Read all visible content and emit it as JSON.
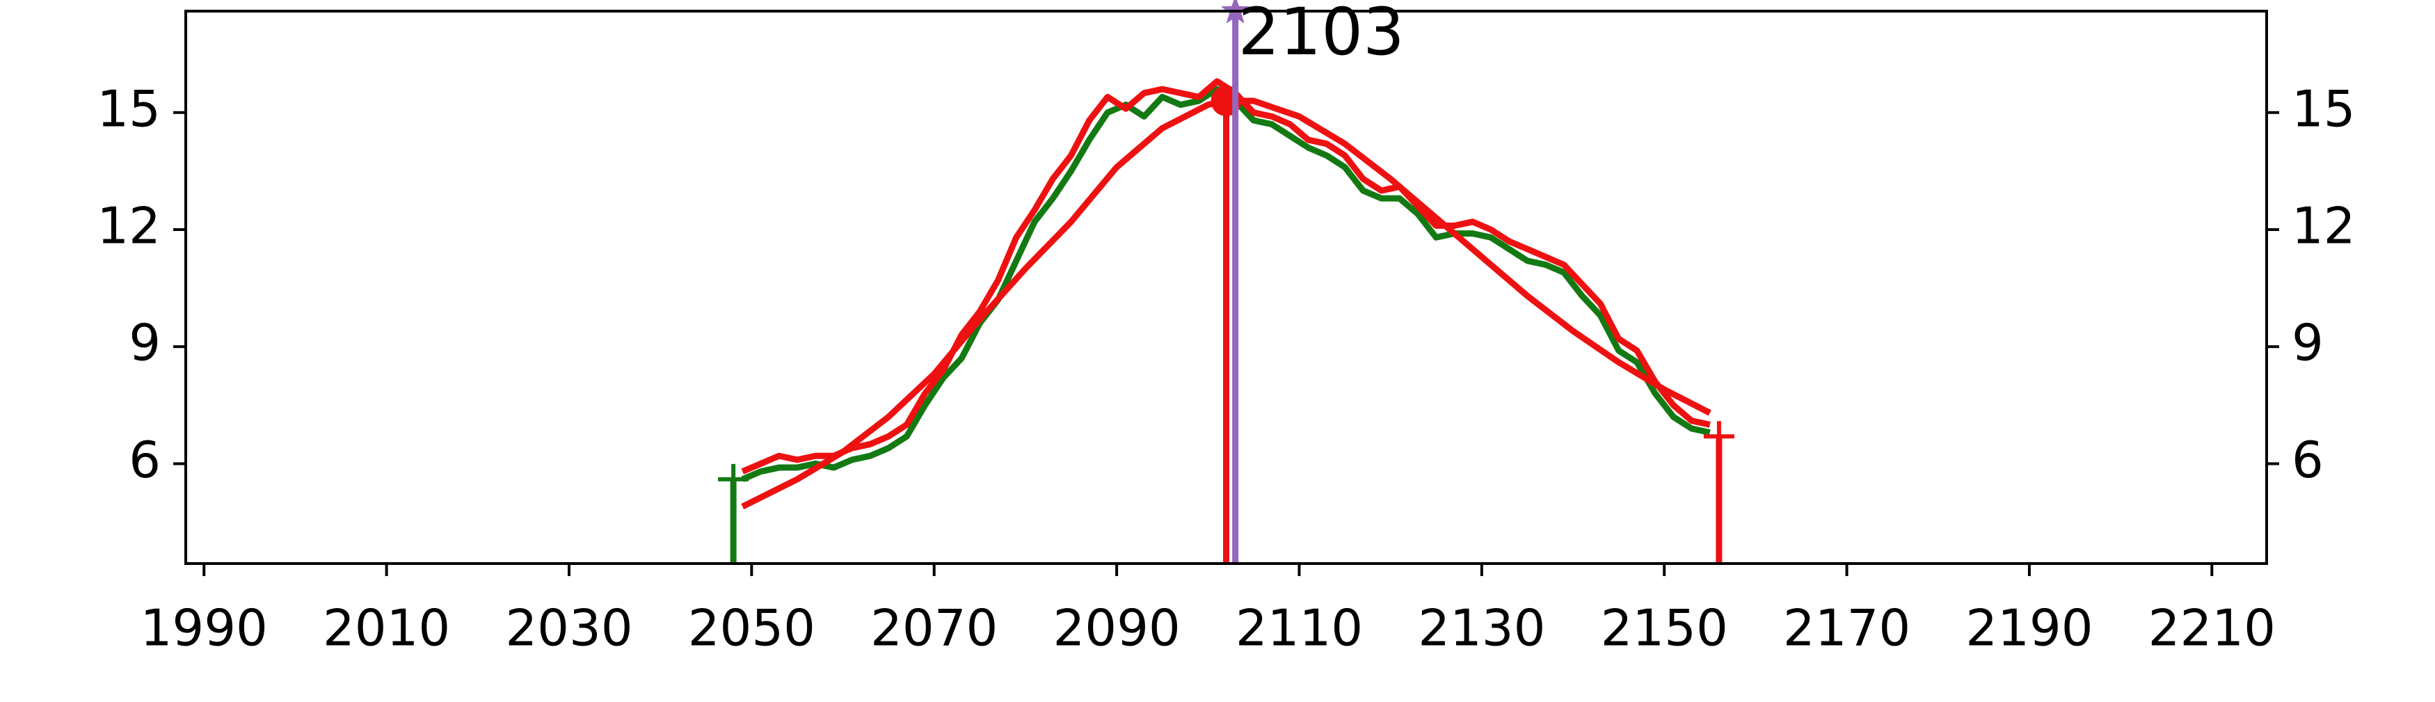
{
  "chart_data": {
    "type": "line",
    "xlim": [
      1988,
      2216
    ],
    "xticks": [
      1990,
      2010,
      2030,
      2050,
      2070,
      2090,
      2110,
      2130,
      2150,
      2170,
      2190,
      2210
    ],
    "ylim": [
      3.44,
      17.6
    ],
    "yticks": [
      6,
      9,
      12,
      15
    ],
    "y2lim": [
      3.44,
      17.6
    ],
    "y2ticks": [
      6,
      9,
      12,
      15
    ],
    "series": [
      {
        "color": "#137a13",
        "x": [
          2049,
          2051,
          2053,
          2055,
          2057,
          2059,
          2061,
          2063,
          2065,
          2067,
          2069,
          2071,
          2073,
          2075,
          2077,
          2079,
          2081,
          2083,
          2085,
          2087,
          2089,
          2091,
          2093,
          2095,
          2097,
          2099,
          2101,
          2103,
          2105,
          2107,
          2109,
          2111,
          2113,
          2115,
          2117,
          2119,
          2121,
          2123,
          2125,
          2127,
          2129,
          2131,
          2133,
          2135,
          2137,
          2139,
          2141,
          2143,
          2145,
          2147,
          2149,
          2151,
          2153,
          2155
        ],
        "values": [
          5.6,
          5.8,
          5.9,
          5.9,
          6.0,
          5.9,
          6.1,
          6.2,
          6.4,
          6.7,
          7.5,
          8.2,
          8.7,
          9.6,
          10.2,
          11.2,
          12.2,
          12.8,
          13.5,
          14.3,
          15.0,
          15.2,
          14.9,
          15.4,
          15.2,
          15.3,
          15.6,
          15.3,
          14.8,
          14.7,
          14.4,
          14.1,
          13.9,
          13.6,
          13.0,
          12.8,
          12.8,
          12.4,
          11.8,
          11.9,
          11.9,
          11.8,
          11.5,
          11.2,
          11.1,
          10.9,
          10.3,
          9.8,
          8.9,
          8.6,
          7.8,
          7.2,
          6.9,
          6.8
        ]
      },
      {
        "color": "#ee1111",
        "x": [
          2049,
          2051,
          2053,
          2055,
          2057,
          2059,
          2061,
          2063,
          2065,
          2067,
          2069,
          2071,
          2073,
          2075,
          2077,
          2079,
          2081,
          2083,
          2085,
          2087,
          2089,
          2091,
          2093,
          2095,
          2097,
          2099,
          2101,
          2103,
          2105,
          2107,
          2109,
          2111,
          2113,
          2115,
          2117,
          2119,
          2121,
          2123,
          2125,
          2127,
          2129,
          2131,
          2133,
          2135,
          2137,
          2139,
          2141,
          2143,
          2145,
          2147,
          2149,
          2151,
          2153,
          2155
        ],
        "values": [
          5.8,
          6.0,
          6.2,
          6.1,
          6.2,
          6.2,
          6.4,
          6.5,
          6.7,
          7.0,
          7.8,
          8.4,
          9.3,
          9.9,
          10.7,
          11.8,
          12.5,
          13.3,
          13.9,
          14.8,
          15.4,
          15.1,
          15.5,
          15.6,
          15.5,
          15.4,
          15.8,
          15.5,
          15.0,
          14.9,
          14.7,
          14.3,
          14.2,
          13.9,
          13.3,
          13.0,
          13.1,
          12.6,
          12.1,
          12.1,
          12.2,
          12.0,
          11.7,
          11.5,
          11.3,
          11.1,
          10.6,
          10.1,
          9.2,
          8.9,
          8.1,
          7.5,
          7.1,
          7.0
        ]
      },
      {
        "color": "#ee1111",
        "x": [
          2049,
          2055,
          2060,
          2065,
          2070,
          2075,
          2080,
          2085,
          2090,
          2095,
          2100,
          2102,
          2105,
          2110,
          2115,
          2120,
          2125,
          2130,
          2135,
          2140,
          2145,
          2150,
          2155
        ],
        "values": [
          4.9,
          5.6,
          6.3,
          7.2,
          8.3,
          9.7,
          11.0,
          12.2,
          13.6,
          14.6,
          15.2,
          15.3,
          15.3,
          14.9,
          14.2,
          13.3,
          12.3,
          11.3,
          10.3,
          9.4,
          8.6,
          7.9,
          7.3
        ]
      }
    ],
    "vlines": [
      {
        "x": 2048,
        "y": 5.6,
        "color": "#137a13",
        "marker": "plus"
      },
      {
        "x": 2156,
        "y": 6.7,
        "color": "#ee1111",
        "marker": "plus"
      },
      {
        "x": 2102,
        "y": 15.3,
        "color": "#ee1111",
        "marker": "dot"
      },
      {
        "x": 2103,
        "y": 17.6,
        "color": "#9467bd",
        "marker": "star"
      }
    ],
    "annotation": {
      "x": 2103
    }
  }
}
